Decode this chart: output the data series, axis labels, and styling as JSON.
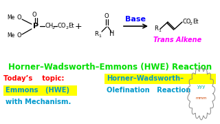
{
  "bg_color": "#ffffff",
  "title_text": "Horner–Wadsworth–Emmons (HWE) Reaction",
  "title_color": "#00dd00",
  "trans_alkene_color": "#ff00ff",
  "bottom_left_color": "#ff0000",
  "bottom_blue_color": "#0099cc",
  "arrow_color": "#0000ff",
  "highlight_color": "#ffff00",
  "bottom_line1_left": "Today’s    topic:",
  "bottom_line1_right": "Horner–Wadsworth–",
  "bottom_line2_left": "Emmons   (HWE)",
  "bottom_line2_right": "Olefination   Reaction",
  "bottom_line3": "with Mechanism."
}
